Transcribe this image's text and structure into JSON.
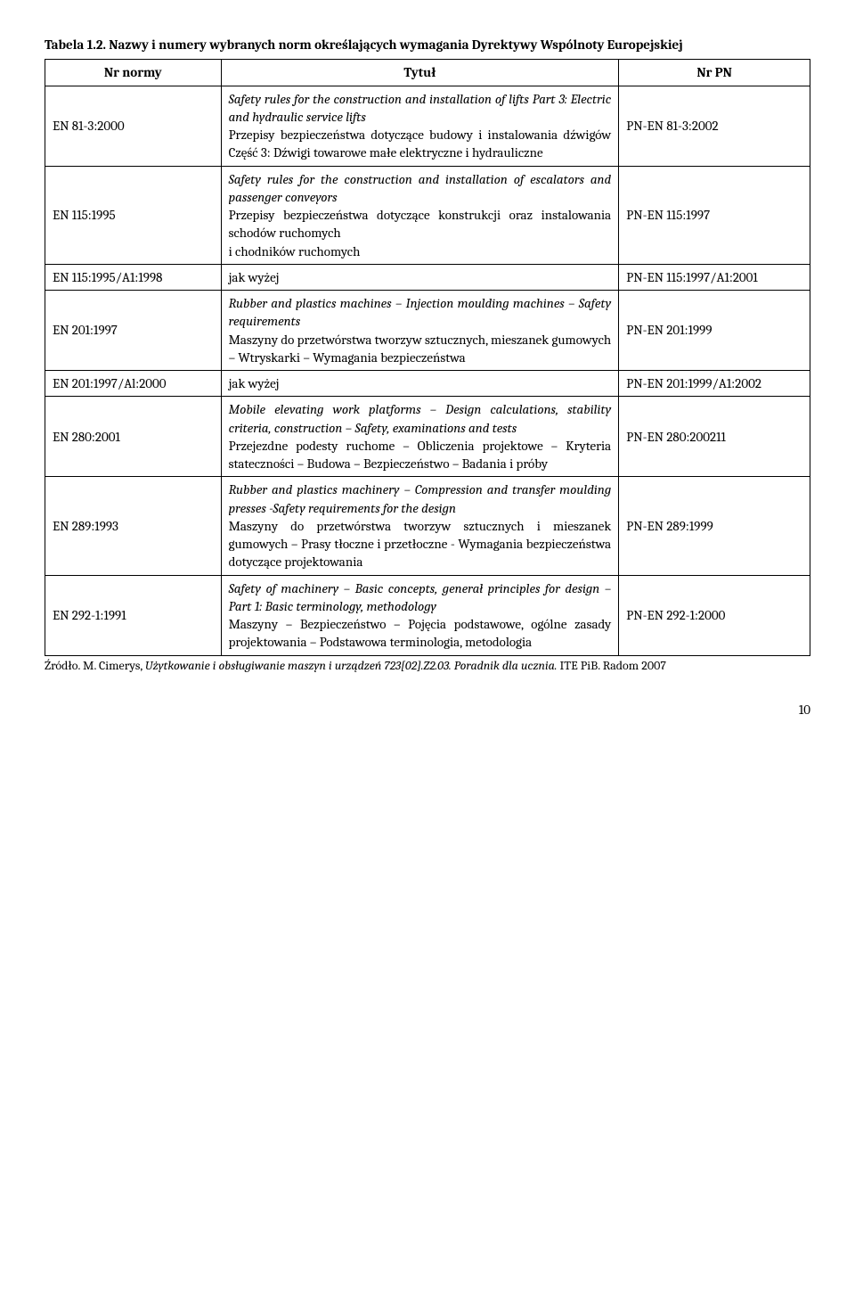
{
  "caption_bold": "Tabela 1.2.",
  "caption_rest": " Nazwy i numery wybranych norm określających wymagania Dyrektywy Wspólnoty Europejskiej",
  "headers": {
    "c1": "Nr normy",
    "c2": "Tytuł",
    "c3": "Nr PN"
  },
  "rows": [
    {
      "nr": "EN 81-3:2000",
      "title_it": "Safety rules for the construction and installation of lifts Part 3: Electric and hydraulic service lifts",
      "title_pl": "Przepisy bezpieczeństwa dotyczące budowy i instalowania dźwigów Część 3: Dźwigi towarowe małe elektryczne i hydrauliczne",
      "pn": "PN-EN 81-3:2002"
    },
    {
      "nr": "EN 115:1995",
      "title_it": "Safety rules for the construction and installation of escalators and passenger conveyors",
      "title_pl": "Przepisy bezpieczeństwa dotyczące konstrukcji oraz instalowania schodów ruchomych",
      "title_pl2": "i chodników ruchomych",
      "pn": "PN-EN 115:1997"
    },
    {
      "nr": "EN 115:1995/A1:1998",
      "title_pl": "jak wyżej",
      "pn": "PN-EN 115:1997/A1:2001"
    },
    {
      "nr": "EN 201:1997",
      "title_it": "Rubber and plastics machines – Injection moulding machines – Safety requirements",
      "title_pl": "Maszyny do przetwórstwa tworzyw sztucznych, mieszanek gumowych – Wtryskarki – Wymagania bezpieczeństwa",
      "pn": "PN-EN 201:1999"
    },
    {
      "nr": "EN 201:1997/Al:2000",
      "title_pl": "jak wyżej",
      "pn": "PN-EN 201:1999/A1:2002"
    },
    {
      "nr": "EN 280:2001",
      "title_it": "Mobile elevating work platforms – Design calculations, stability criteria, construction – Safety, examinations and tests",
      "title_pl": "Przejezdne podesty ruchome – Obliczenia projektowe – Kryteria stateczności – Budowa – Bezpieczeństwo – Badania i próby",
      "pn": "PN-EN 280:200211"
    },
    {
      "nr": "EN 289:1993",
      "title_it": "Rubber and plastics machinery – Compression and transfer moulding presses -Safety requirements for the design",
      "title_pl": "Maszyny do przetwórstwa tworzyw sztucznych i mieszanek gumowych – Prasy tłoczne i przetłoczne - Wymagania bezpieczeństwa dotyczące projektowania",
      "pn": "PN-EN 289:1999"
    },
    {
      "nr": "EN 292-1:1991",
      "title_it": "Safety of machinery – Basic concepts, generał principles for design – Part 1: Basic terminology, methodology",
      "title_pl": "Maszyny – Bezpieczeństwo – Pojęcia podstawowe, ogólne zasady projektowania – Podstawowa terminologia, metodologia",
      "pn": "PN-EN 292-1:2000"
    }
  ],
  "footnote_prefix": "Źródło. M. Cimerys, ",
  "footnote_it": "Użytkowanie i obsługiwanie maszyn i urządzeń 723[02].Z2.03. Poradnik dla ucznia.",
  "footnote_rest": " ITE PiB. Radom 2007",
  "pagenum": "10"
}
